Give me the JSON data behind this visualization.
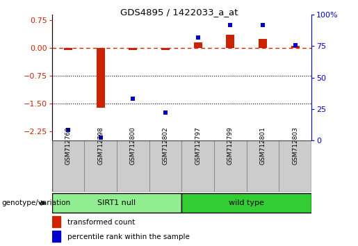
{
  "title": "GDS4895 / 1422033_a_at",
  "samples": [
    "GSM712769",
    "GSM712798",
    "GSM712800",
    "GSM712802",
    "GSM712797",
    "GSM712799",
    "GSM712801",
    "GSM712803"
  ],
  "transformed_count": [
    -0.05,
    -1.62,
    -0.05,
    -0.05,
    0.15,
    0.35,
    0.25,
    0.05
  ],
  "percentile_rank": [
    8,
    2,
    33,
    22,
    82,
    92,
    92,
    76
  ],
  "groups": [
    {
      "label": "SIRT1 null",
      "start": 0,
      "end": 4,
      "color": "#90EE90"
    },
    {
      "label": "wild type",
      "start": 4,
      "end": 8,
      "color": "#32CD32"
    }
  ],
  "group_label": "genotype/variation",
  "ylim_left": [
    -2.5,
    0.9
  ],
  "ylim_right": [
    0,
    100
  ],
  "yticks_left": [
    0.75,
    0.0,
    -0.75,
    -1.5,
    -2.25
  ],
  "yticks_right": [
    100,
    75,
    50,
    25,
    0
  ],
  "hlines": [
    -0.75,
    -1.5
  ],
  "red_color": "#CC2200",
  "blue_color": "#0000CC",
  "legend_items": [
    "transformed count",
    "percentile rank within the sample"
  ],
  "bar_width": 0.4,
  "marker_size": 5,
  "group_bar_colors": [
    "#90EE90",
    "#32CD32"
  ],
  "sample_box_color": "#CCCCCC",
  "fig_width": 5.15,
  "fig_height": 3.54,
  "dpi": 100
}
